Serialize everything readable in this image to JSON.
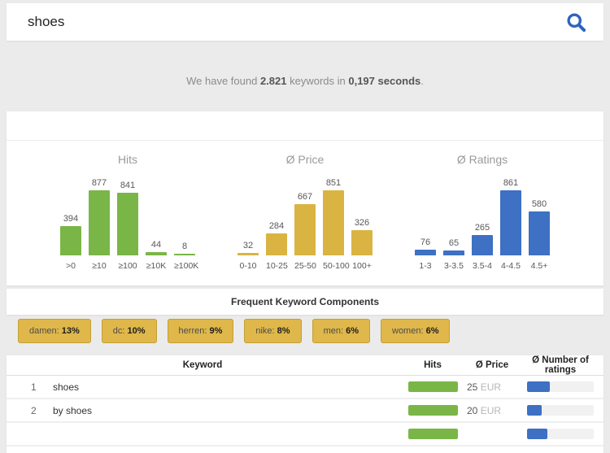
{
  "search": {
    "value": "shoes"
  },
  "result_message": {
    "prefix": "We have found ",
    "count": "2.821",
    "middle": " keywords in ",
    "time": "0,197 seconds",
    "suffix": "."
  },
  "chart_data": [
    {
      "type": "bar",
      "title": "Hits",
      "categories": [
        ">0",
        "≥10",
        "≥100",
        "≥10K",
        "≥100K"
      ],
      "values": [
        394,
        877,
        841,
        44,
        8
      ],
      "color": "#7ab647",
      "ylim": [
        0,
        900
      ],
      "legend": "none",
      "grid": false
    },
    {
      "type": "bar",
      "title": "Ø Price",
      "categories": [
        "0-10",
        "10-25",
        "25-50",
        "50-100",
        "100+"
      ],
      "values": [
        32,
        284,
        667,
        851,
        326
      ],
      "color": "#d9b443",
      "ylim": [
        0,
        900
      ],
      "legend": "none",
      "grid": false
    },
    {
      "type": "bar",
      "title": "Ø Ratings",
      "categories": [
        "1-3",
        "3-3.5",
        "3.5-4",
        "4-4.5",
        "4.5+"
      ],
      "values": [
        76,
        65,
        265,
        861,
        580
      ],
      "color": "#3e70c4",
      "ylim": [
        0,
        900
      ],
      "legend": "none",
      "grid": false
    }
  ],
  "keyword_components": {
    "heading": "Frequent Keyword Components",
    "tags": [
      {
        "label": "damen:",
        "value": "13%"
      },
      {
        "label": "dc:",
        "value": "10%"
      },
      {
        "label": "herren:",
        "value": "9%"
      },
      {
        "label": "nike:",
        "value": "8%"
      },
      {
        "label": "men:",
        "value": "6%"
      },
      {
        "label": "women:",
        "value": "6%"
      }
    ]
  },
  "table": {
    "headers": {
      "keyword": "Keyword",
      "hits": "Hits",
      "price": "Ø Price",
      "ratings": "Ø Number of ratings"
    },
    "rows": [
      {
        "rank": "1",
        "keyword": "shoes",
        "hits_percent": 100,
        "price": "25",
        "currency": "EUR",
        "ratings_percent": 34
      },
      {
        "rank": "2",
        "keyword": "by shoes",
        "hits_percent": 100,
        "price": "20",
        "currency": "EUR",
        "ratings_percent": 22
      },
      {
        "rank": "",
        "keyword": "",
        "hits_percent": 100,
        "price": "",
        "currency": "",
        "ratings_percent": 30
      }
    ]
  },
  "colors": {
    "hits_green": "#7ab647",
    "price_gold": "#d9b443",
    "ratings_blue": "#3e70c4",
    "search_icon_blue": "#2f64bd",
    "tag_background": "#dfb74a",
    "tag_border": "#c3a035",
    "page_background": "#ebebeb"
  }
}
